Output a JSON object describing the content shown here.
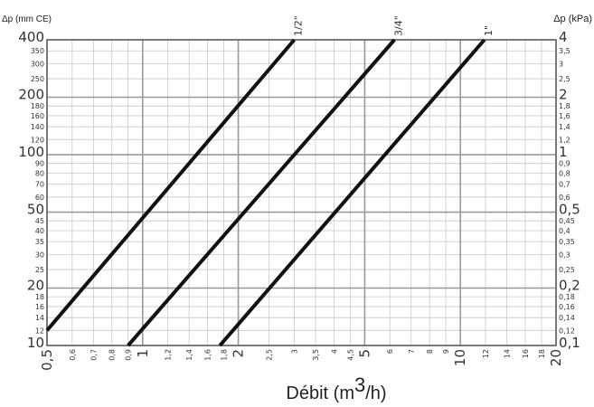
{
  "chart_data": {
    "type": "line",
    "x_scale": "log",
    "y_scale": "log",
    "xlim": [
      0.5,
      20
    ],
    "ylim": [
      10,
      400
    ],
    "y2lim": [
      0.1,
      4
    ],
    "grid": true,
    "xlabel_prefix": "Débit (m",
    "xlabel_sup": "3",
    "xlabel_suffix": "/h)",
    "ylabel_left": "Δp (mm CE)",
    "ylabel_right": "Δp (kPa)",
    "x_ticks": [
      {
        "v": 0.5,
        "label": "0,5",
        "major": true
      },
      {
        "v": 0.6,
        "label": "0,6",
        "major": false
      },
      {
        "v": 0.7,
        "label": "0,7",
        "major": false
      },
      {
        "v": 0.8,
        "label": "0,8",
        "major": false
      },
      {
        "v": 0.9,
        "label": "0,9",
        "major": false
      },
      {
        "v": 1,
        "label": "1",
        "major": true
      },
      {
        "v": 1.2,
        "label": "1,2",
        "major": false
      },
      {
        "v": 1.4,
        "label": "1,4",
        "major": false
      },
      {
        "v": 1.6,
        "label": "1,6",
        "major": false
      },
      {
        "v": 1.8,
        "label": "1,8",
        "major": false
      },
      {
        "v": 2,
        "label": "2",
        "major": true
      },
      {
        "v": 2.5,
        "label": "2,5",
        "major": false
      },
      {
        "v": 3,
        "label": "3",
        "major": false
      },
      {
        "v": 3.5,
        "label": "3,5",
        "major": false
      },
      {
        "v": 4,
        "label": "4",
        "major": false
      },
      {
        "v": 4.5,
        "label": "4,5",
        "major": false
      },
      {
        "v": 5,
        "label": "5",
        "major": true
      },
      {
        "v": 6,
        "label": "6",
        "major": false
      },
      {
        "v": 7,
        "label": "7",
        "major": false
      },
      {
        "v": 8,
        "label": "8",
        "major": false
      },
      {
        "v": 9,
        "label": "9",
        "major": false
      },
      {
        "v": 10,
        "label": "10",
        "major": true
      },
      {
        "v": 12,
        "label": "12",
        "major": false
      },
      {
        "v": 14,
        "label": "14",
        "major": false
      },
      {
        "v": 16,
        "label": "16",
        "major": false
      },
      {
        "v": 18,
        "label": "18",
        "major": false
      },
      {
        "v": 20,
        "label": "20",
        "major": true
      }
    ],
    "y_ticks": [
      {
        "v": 10,
        "label": "10",
        "right": "0,1",
        "major": true
      },
      {
        "v": 12,
        "label": "12",
        "right": "0,12",
        "major": false
      },
      {
        "v": 14,
        "label": "14",
        "right": "0,14",
        "major": false
      },
      {
        "v": 16,
        "label": "16",
        "right": "0,16",
        "major": false
      },
      {
        "v": 18,
        "label": "18",
        "right": "0,18",
        "major": false
      },
      {
        "v": 20,
        "label": "20",
        "right": "0,2",
        "major": true
      },
      {
        "v": 25,
        "label": "25",
        "right": "0,25",
        "major": false
      },
      {
        "v": 30,
        "label": "30",
        "right": "0,3",
        "major": false
      },
      {
        "v": 35,
        "label": "35",
        "right": "0,35",
        "major": false
      },
      {
        "v": 40,
        "label": "40",
        "right": "0,4",
        "major": false
      },
      {
        "v": 45,
        "label": "45",
        "right": "0,45",
        "major": false
      },
      {
        "v": 50,
        "label": "50",
        "right": "0,5",
        "major": true
      },
      {
        "v": 60,
        "label": "60",
        "right": "0,6",
        "major": false
      },
      {
        "v": 70,
        "label": "70",
        "right": "0,7",
        "major": false
      },
      {
        "v": 80,
        "label": "80",
        "right": "0,8",
        "major": false
      },
      {
        "v": 90,
        "label": "90",
        "right": "0,9",
        "major": false
      },
      {
        "v": 100,
        "label": "100",
        "right": "1",
        "major": true
      },
      {
        "v": 120,
        "label": "120",
        "right": "1,2",
        "major": false
      },
      {
        "v": 140,
        "label": "140",
        "right": "1,4",
        "major": false
      },
      {
        "v": 160,
        "label": "160",
        "right": "1,6",
        "major": false
      },
      {
        "v": 180,
        "label": "180",
        "right": "1,8",
        "major": false
      },
      {
        "v": 200,
        "label": "200",
        "right": "2",
        "major": true
      },
      {
        "v": 250,
        "label": "250",
        "right": "2,5",
        "major": false
      },
      {
        "v": 300,
        "label": "300",
        "right": "3",
        "major": false
      },
      {
        "v": 350,
        "label": "350",
        "right": "3,5",
        "major": false
      },
      {
        "v": 400,
        "label": "400",
        "right": "4",
        "major": true
      }
    ],
    "series": [
      {
        "name": "1/2\"",
        "points": [
          [
            0.5,
            12
          ],
          [
            3.0,
            400
          ]
        ]
      },
      {
        "name": "3/4\"",
        "points": [
          [
            0.9,
            10
          ],
          [
            6.2,
            400
          ]
        ]
      },
      {
        "name": "1\"",
        "points": [
          [
            1.75,
            10
          ],
          [
            11.9,
            400
          ]
        ]
      }
    ],
    "colors": {
      "line": "#111111",
      "grid_minor": "#c8c8c8",
      "grid_major": "#9a9a9a",
      "frame": "#666666"
    }
  }
}
